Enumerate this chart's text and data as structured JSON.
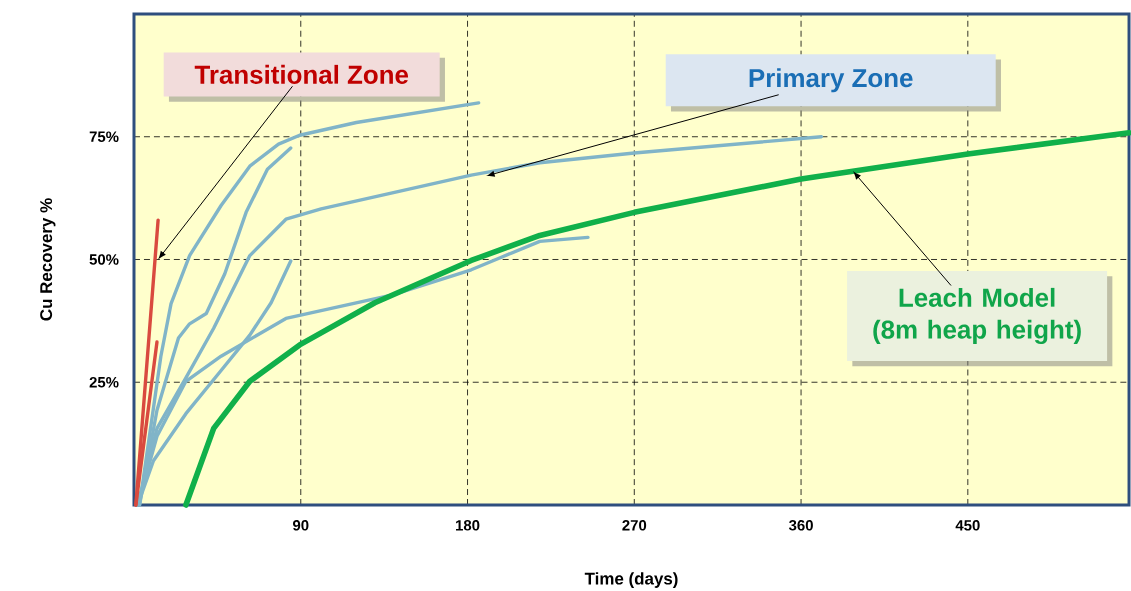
{
  "chart_data": {
    "type": "line",
    "xlabel": "Time (days)",
    "ylabel": "Cu Recovery %",
    "xlim": [
      0,
      537
    ],
    "ylim": [
      0,
      100
    ],
    "xticks": [
      90,
      180,
      270,
      360,
      450
    ],
    "yticks": [
      {
        "value": 25,
        "label": "25%"
      },
      {
        "value": 50,
        "label": "50%"
      },
      {
        "value": 75,
        "label": "75%"
      }
    ],
    "grid": true,
    "marker": "none",
    "line_style": "solid",
    "series": [
      {
        "color": "#80b4c8",
        "x": [
          3,
          14.5,
          20,
          30,
          47,
          62.5,
          78,
          89.4,
          120,
          186
        ],
        "values": [
          0,
          30.3,
          41,
          50.8,
          61,
          69,
          73.5,
          75.3,
          77.9,
          81.9
        ]
      },
      {
        "color": "#80b4c8",
        "x": [
          3,
          12.4,
          24,
          30,
          39,
          49,
          60.5,
          72,
          84.6
        ],
        "values": [
          0,
          19.3,
          34,
          36.9,
          39,
          47.1,
          59.6,
          68.4,
          72.7
        ]
      },
      {
        "color": "#80b4c8",
        "x": [
          2,
          12.4,
          28,
          43,
          62.5,
          82,
          101,
          182,
          219,
          270,
          371
        ],
        "values": [
          0,
          15.6,
          25.9,
          36,
          50.8,
          58.2,
          60.3,
          67.2,
          69.7,
          71.7,
          75
        ]
      },
      {
        "color": "#80b4c8",
        "x": [
          2,
          10.5,
          28,
          47,
          62.5,
          74,
          84.6
        ],
        "values": [
          0,
          9,
          18.6,
          27.4,
          34.6,
          41.2,
          49.7
        ]
      },
      {
        "color": "#80b4c8",
        "x": [
          2,
          12.4,
          28,
          47,
          82,
          139.5,
          182,
          219,
          245
        ],
        "values": [
          0,
          14,
          25.2,
          30.3,
          38,
          42.8,
          47.9,
          53.7,
          54.5
        ]
      },
      {
        "color": "#d94a3f",
        "x": [
          1,
          13
        ],
        "values": [
          0,
          58
        ]
      },
      {
        "color": "#d94a3f",
        "x": [
          1,
          12.4
        ],
        "values": [
          0,
          33.2
        ]
      },
      {
        "color": "#10b04a",
        "x": [
          28,
          43,
          62.5,
          89.4,
          130,
          182,
          219,
          270,
          360,
          450,
          537
        ],
        "values": [
          0,
          15.6,
          25.2,
          32.6,
          41.2,
          49.8,
          54.9,
          59.6,
          66.4,
          71.5,
          75.8
        ]
      }
    ],
    "annotations": [
      {
        "text": "Transitional Zone",
        "x": 13,
        "y": 50
      },
      {
        "text": "Primary Zone",
        "x": 190,
        "y": 67
      },
      {
        "text": "Leach Model (8m heap height)",
        "x": 388,
        "y": 68
      }
    ]
  }
}
